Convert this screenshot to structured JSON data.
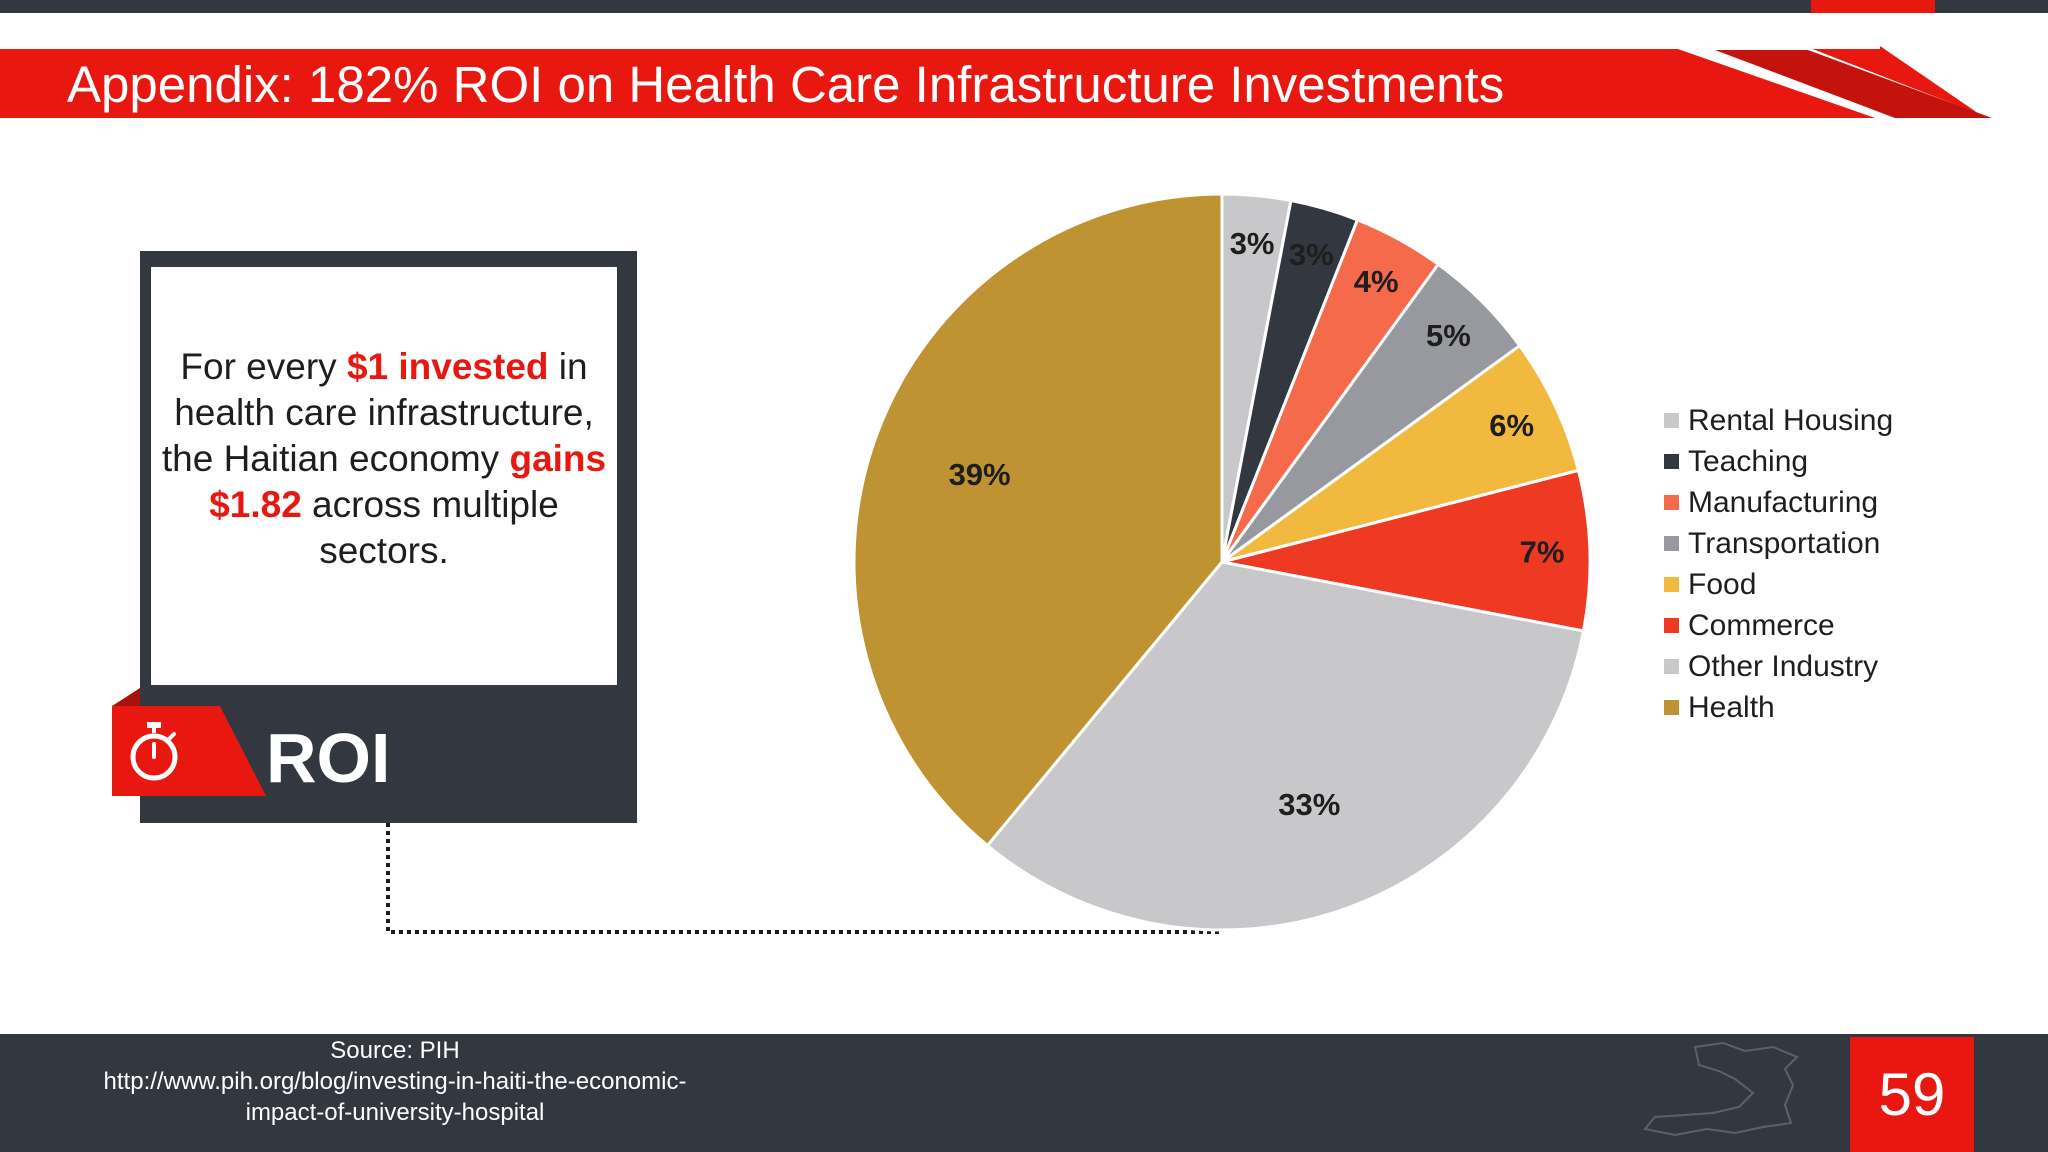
{
  "slide": {
    "title": "Appendix: 182% ROI on Health Care Infrastructure Investments",
    "page_number": "59"
  },
  "roi_card": {
    "text_1": "For every ",
    "highlight_1": "$1 invested",
    "text_2": " in health care infrastructure, the Haitian economy ",
    "highlight_2": "gains $1.82",
    "text_3": " across multiple sectors.",
    "label": "ROI",
    "icon": "stopwatch-icon"
  },
  "footer": {
    "source_label": "Source: PIH",
    "source_url_line1": "http://www.pih.org/blog/investing-in-haiti-the-economic-",
    "source_url_line2": "impact-of-university-hospital",
    "icon": "haiti-map-icon"
  },
  "colors": {
    "accent_red": "#e8170f",
    "dark": "#333740"
  },
  "chart_data": {
    "type": "pie",
    "title": "",
    "start_angle_deg": 0,
    "direction": "clockwise",
    "legend_position": "right",
    "slices": [
      {
        "label": "Rental Housing",
        "value": 3,
        "display": "3%",
        "color": "#c8c7c9"
      },
      {
        "label": "Teaching",
        "value": 3,
        "display": "3%",
        "color": "#333740"
      },
      {
        "label": "Manufacturing",
        "value": 4,
        "display": "4%",
        "color": "#f46a4a"
      },
      {
        "label": "Transportation",
        "value": 5,
        "display": "5%",
        "color": "#97999e"
      },
      {
        "label": "Food",
        "value": 6,
        "display": "6%",
        "color": "#f1ba3e"
      },
      {
        "label": "Commerce",
        "value": 7,
        "display": "7%",
        "color": "#ee3a23"
      },
      {
        "label": "Other Industry",
        "value": 33,
        "display": "33%",
        "color": "#c8c7c9"
      },
      {
        "label": "Health",
        "value": 39,
        "display": "39%",
        "color": "#c09332"
      }
    ]
  }
}
